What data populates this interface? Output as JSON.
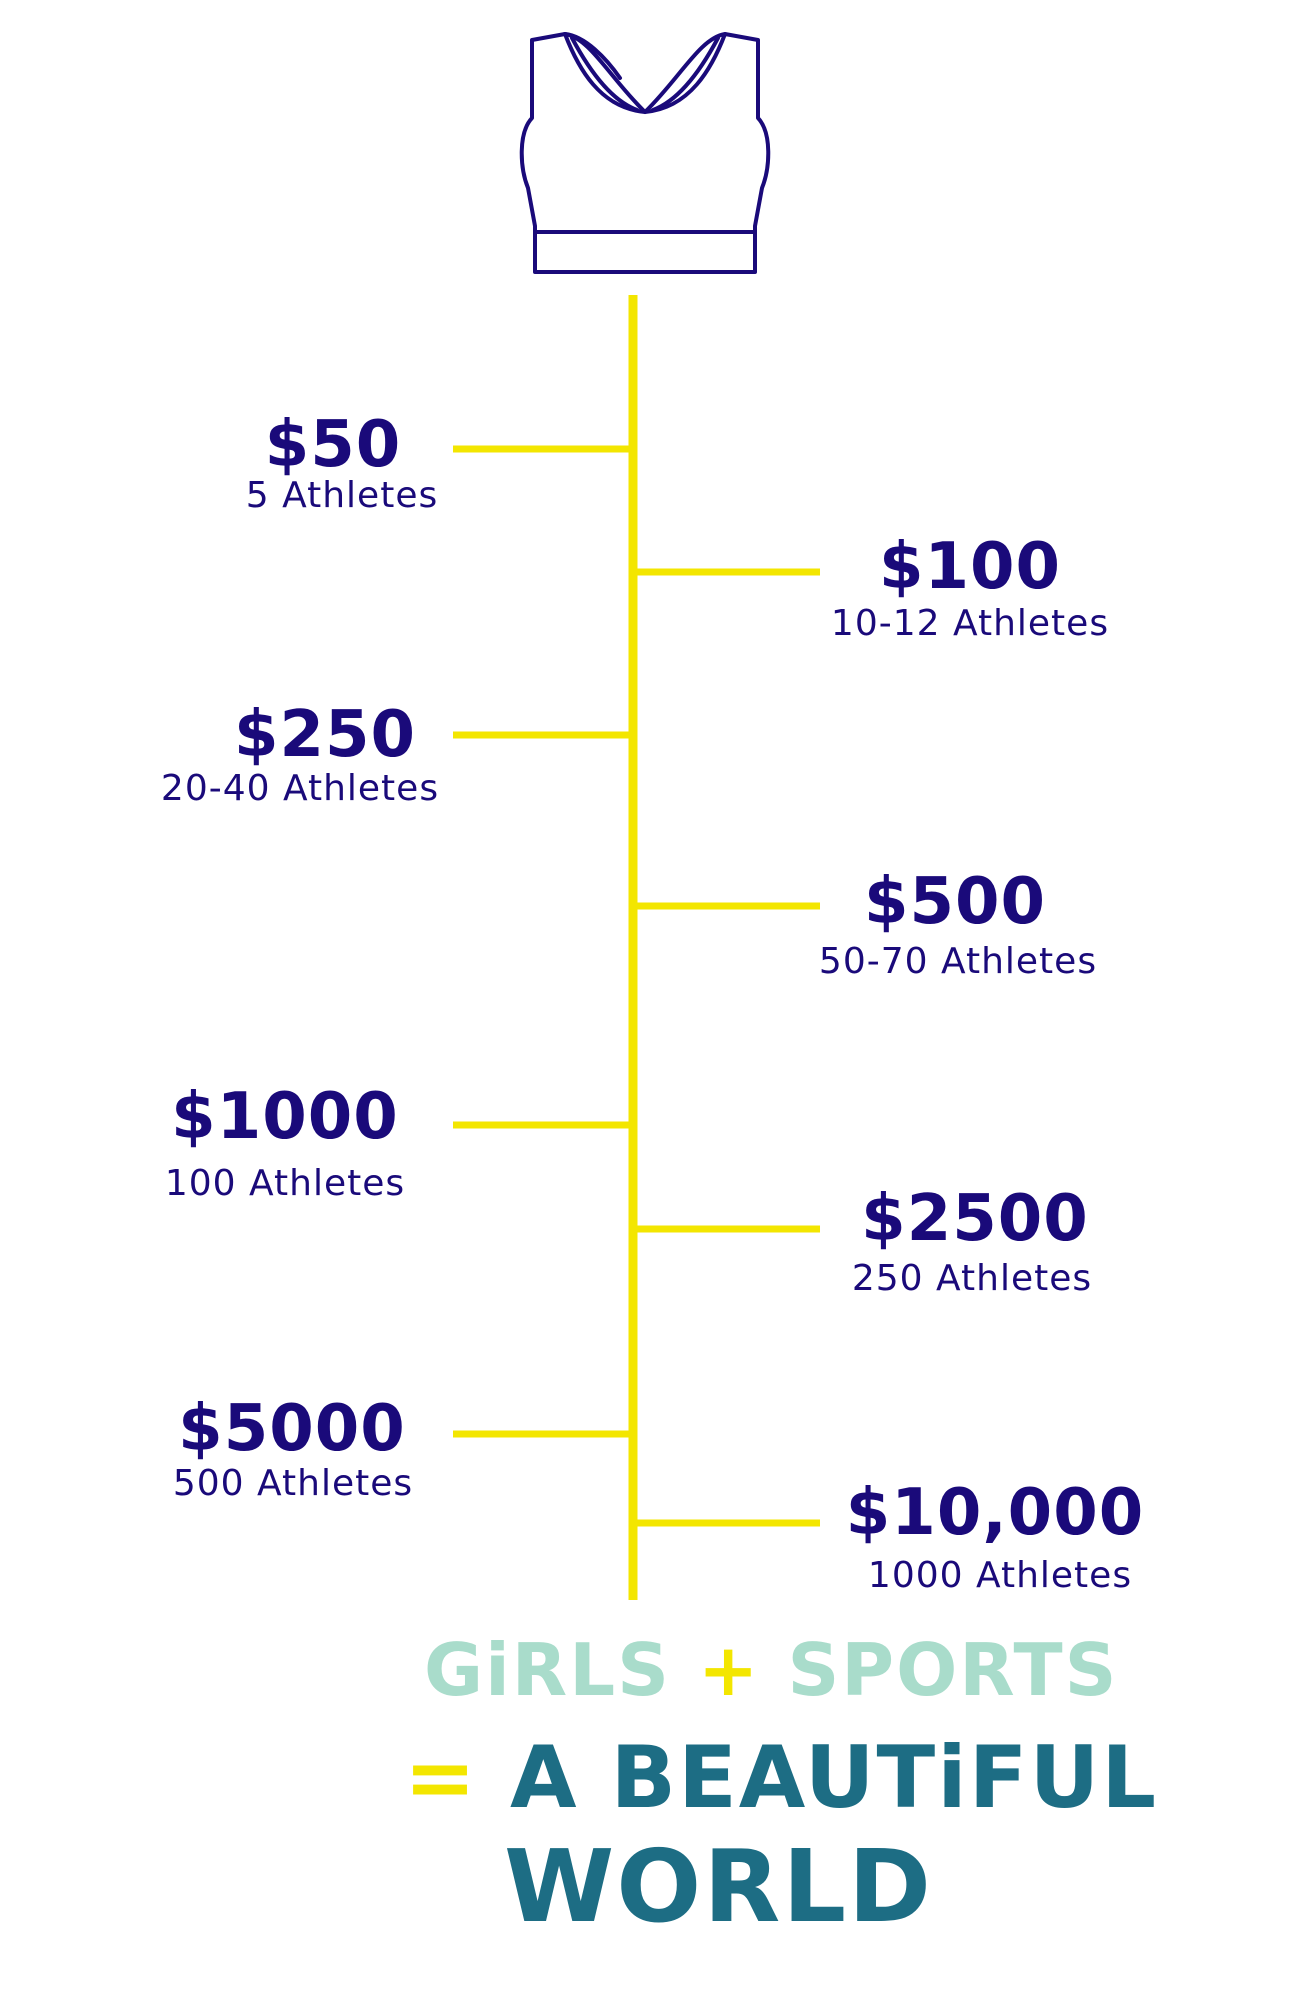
{
  "colors": {
    "navy": "#1a0a7a",
    "timeline_yellow": "#f3e600",
    "logo_mint": "#a9dccb",
    "logo_teal": "#1d6d84"
  },
  "icon": "sports-bra-icon",
  "tiers": [
    {
      "amount": "$50",
      "athletes": "5 Athletes",
      "side": "left"
    },
    {
      "amount": "$100",
      "athletes": "10-12 Athletes",
      "side": "right"
    },
    {
      "amount": "$250",
      "athletes": "20-40 Athletes",
      "side": "left"
    },
    {
      "amount": "$500",
      "athletes": "50-70 Athletes",
      "side": "right"
    },
    {
      "amount": "$1000",
      "athletes": "100 Athletes",
      "side": "left"
    },
    {
      "amount": "$2500",
      "athletes": "250 Athletes",
      "side": "right"
    },
    {
      "amount": "$5000",
      "athletes": "500 Athletes",
      "side": "left"
    },
    {
      "amount": "$10,000",
      "athletes": "1000 Athletes",
      "side": "right"
    }
  ],
  "logo": {
    "word1": "GiRLS",
    "plus": "+",
    "word2": "SPORTS",
    "equals": "=",
    "line2": "A BEAUTiFUL",
    "line3": "WORLD"
  }
}
